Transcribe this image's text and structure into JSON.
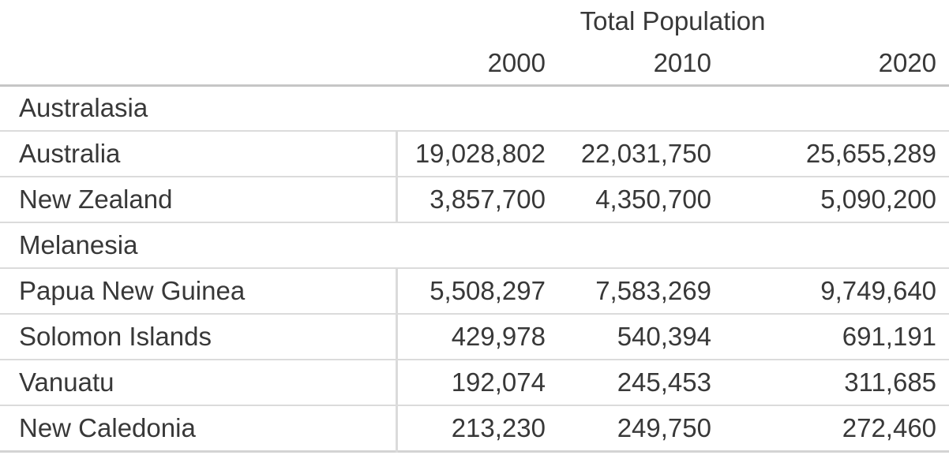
{
  "table": {
    "title": "Total Population",
    "years": [
      "2000",
      "2010",
      "2020"
    ],
    "sections": [
      {
        "region": "Australasia",
        "rows": [
          {
            "label": "Australia",
            "values": [
              "19,028,802",
              "22,031,750",
              "25,655,289"
            ]
          },
          {
            "label": "New Zealand",
            "values": [
              "3,857,700",
              "4,350,700",
              "5,090,200"
            ]
          }
        ]
      },
      {
        "region": "Melanesia",
        "rows": [
          {
            "label": "Papua New Guinea",
            "values": [
              "5,508,297",
              "7,583,269",
              "9,749,640"
            ]
          },
          {
            "label": "Solomon Islands",
            "values": [
              "429,978",
              "540,394",
              "691,191"
            ]
          },
          {
            "label": "Vanuatu",
            "values": [
              "192,074",
              "245,453",
              "311,685"
            ]
          },
          {
            "label": "New Caledonia",
            "values": [
              "213,230",
              "249,750",
              "272,460"
            ]
          }
        ]
      }
    ]
  },
  "colors": {
    "text": "#383838",
    "header_rule": "#c6c6c6",
    "row_divider": "#dbdbdb",
    "bottom_rule": "#d4d4d4",
    "background": "#ffffff"
  },
  "chart_data": {
    "type": "table",
    "title": "Total Population",
    "column_headers": [
      "2000",
      "2010",
      "2020"
    ],
    "row_groups": [
      {
        "group": "Australasia",
        "rows": [
          {
            "label": "Australia",
            "values": [
              19028802,
              22031750,
              25655289
            ]
          },
          {
            "label": "New Zealand",
            "values": [
              3857700,
              4350700,
              5090200
            ]
          }
        ]
      },
      {
        "group": "Melanesia",
        "rows": [
          {
            "label": "Papua New Guinea",
            "values": [
              5508297,
              7583269,
              9749640
            ]
          },
          {
            "label": "Solomon Islands",
            "values": [
              429978,
              540394,
              691191
            ]
          },
          {
            "label": "Vanuatu",
            "values": [
              192074,
              245453,
              311685
            ]
          },
          {
            "label": "New Caledonia",
            "values": [
              213230,
              249750,
              272460
            ]
          }
        ]
      }
    ]
  }
}
